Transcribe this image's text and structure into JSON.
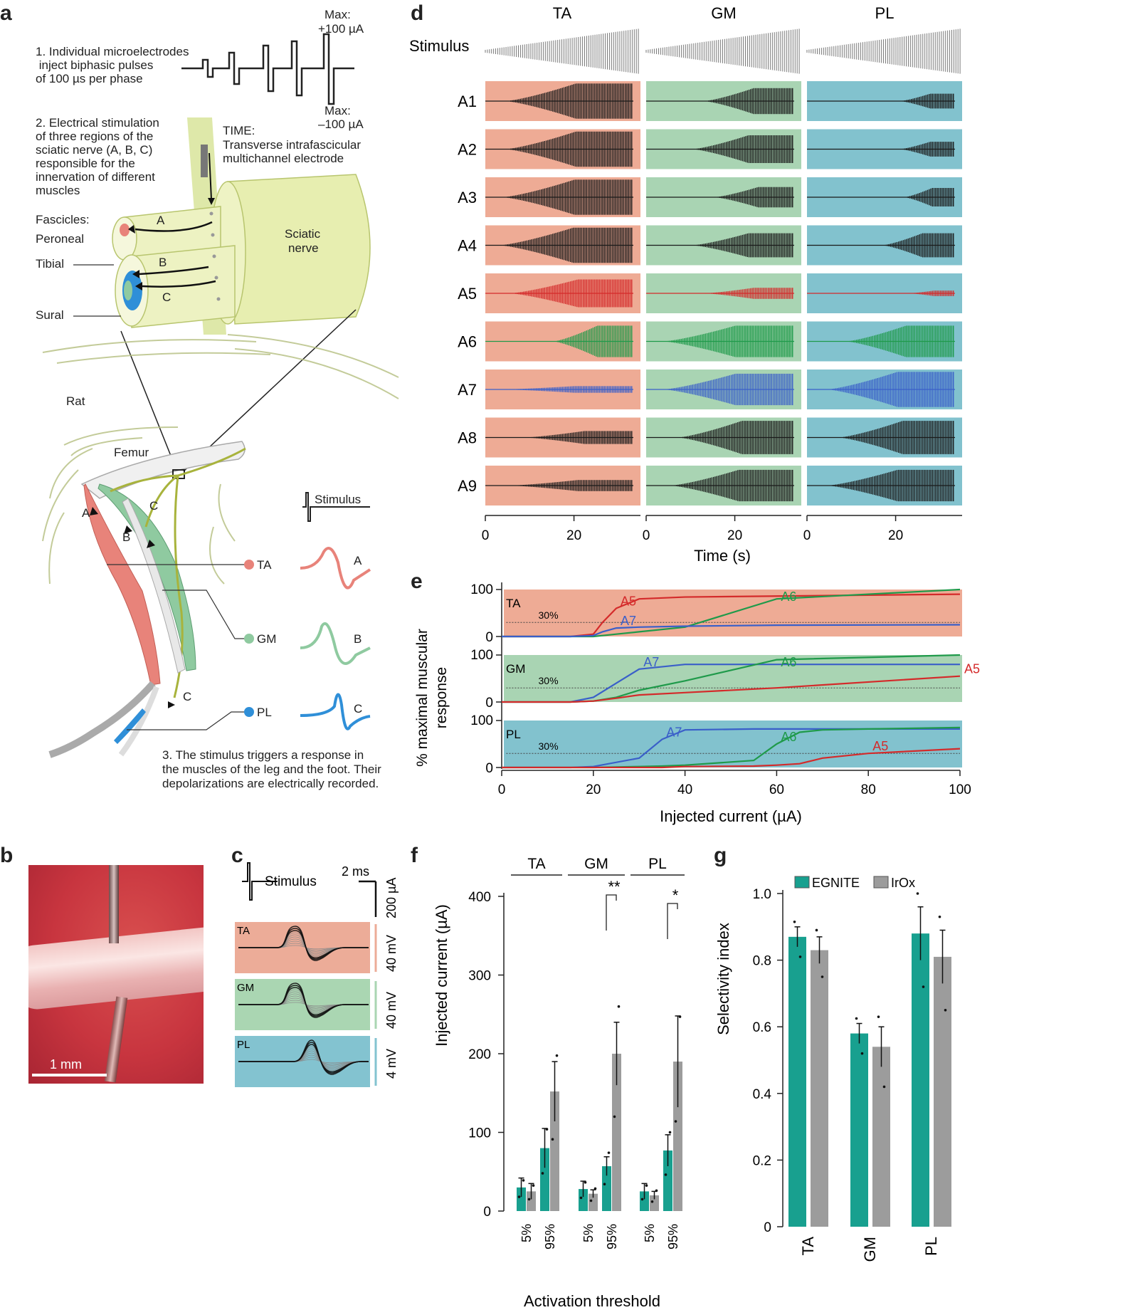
{
  "panel_labels": {
    "a": "a",
    "b": "b",
    "c": "c",
    "d": "d",
    "e": "e",
    "f": "f",
    "g": "g"
  },
  "panel_a": {
    "step1": [
      "1. Individual microelectrodes",
      " inject biphasic pulses",
      "of 100 µs per phase"
    ],
    "max_pos": [
      "Max:",
      "+100 µA"
    ],
    "max_neg": [
      "Max:",
      "–100 µA"
    ],
    "step2": [
      "2. Electrical stimulation",
      "of three regions of the",
      "sciatic nerve (A, B, C)",
      "responsible for the",
      "innervation of different",
      "muscles"
    ],
    "time_label": [
      "TIME:",
      "Transverse intrafascicular",
      "multichannel electrode"
    ],
    "fascicles": "Fascicles:",
    "peroneal": "Peroneal",
    "tibial": "Tibial",
    "sural": "Sural",
    "sciatic": [
      "Sciatic",
      "nerve"
    ],
    "region_a": "A",
    "region_b": "B",
    "region_c": "C",
    "rat": "Rat",
    "femur": "Femur",
    "stimulus": "Stimulus",
    "muscles": [
      "TA",
      "GM",
      "PL"
    ],
    "step3": [
      "3. The stimulus triggers a response in",
      "the muscles of the leg and the foot. Their",
      "depolarizations are electrically recorded."
    ],
    "colors": {
      "peroneal": "#e8837a",
      "tibial_blue": "#2f8fd8",
      "green": "#8fcaa0",
      "nerve": "#e7eeb0"
    }
  },
  "panel_b": {
    "scale_label": "1 mm"
  },
  "panel_c": {
    "time_scale": "2 ms",
    "stim_label": "Stimulus",
    "stim_scale": "200 µA",
    "rows": [
      {
        "name": "TA",
        "scale": "40 mV",
        "color": "#ecac98"
      },
      {
        "name": "GM",
        "scale": "40 mV",
        "color": "#aad6b2"
      },
      {
        "name": "PL",
        "scale": "4 mV",
        "color": "#83c3d0"
      }
    ]
  },
  "panel_d": {
    "columns": [
      "TA",
      "GM",
      "PL"
    ],
    "stimulus_label": "Stimulus",
    "rows": [
      "A1",
      "A2",
      "A3",
      "A4",
      "A5",
      "A6",
      "A7",
      "A8",
      "A9"
    ],
    "xlabel": "Time (s)",
    "xticks": [
      "0",
      "20"
    ],
    "bg_colors": [
      "#eeab95",
      "#a9d4b3",
      "#82c2ce"
    ],
    "trace_colors": {
      "A5": "#d42a2a",
      "A6": "#1f9a4a",
      "A7": "#3a5fc9",
      "default": "#1a1a1a"
    },
    "envelopes": [
      [
        [
          0.12,
          0.95
        ],
        [
          0.38,
          0.7
        ],
        [
          0.62,
          0.4
        ]
      ],
      [
        [
          0.12,
          0.95
        ],
        [
          0.3,
          0.75
        ],
        [
          0.62,
          0.4
        ]
      ],
      [
        [
          0.1,
          0.95
        ],
        [
          0.45,
          0.55
        ],
        [
          0.65,
          0.5
        ]
      ],
      [
        [
          0.08,
          0.95
        ],
        [
          0.3,
          0.65
        ],
        [
          0.5,
          0.65
        ]
      ],
      [
        [
          0.15,
          0.75
        ],
        [
          0.38,
          0.3
        ],
        [
          0.68,
          0.15
        ]
      ],
      [
        [
          0.45,
          0.85
        ],
        [
          0.1,
          0.85
        ],
        [
          0.25,
          0.85
        ]
      ],
      [
        [
          0.1,
          0.18
        ],
        [
          0.1,
          0.85
        ],
        [
          0.12,
          0.95
        ]
      ],
      [
        [
          0.25,
          0.35
        ],
        [
          0.2,
          0.9
        ],
        [
          0.2,
          0.9
        ]
      ],
      [
        [
          0.15,
          0.3
        ],
        [
          0.15,
          0.85
        ],
        [
          0.12,
          0.85
        ]
      ]
    ]
  },
  "panel_e": {
    "ylabel": [
      "% maximal muscular",
      "response"
    ],
    "xlabel": "Injected current (µA)",
    "xticks": [
      "0",
      "20",
      "40",
      "60",
      "80",
      "100"
    ],
    "threshold_label": "30%",
    "chart_data": [
      {
        "type": "line",
        "title": "TA",
        "x": [
          0,
          15,
          20,
          22,
          25,
          30,
          40,
          60,
          100
        ],
        "series": [
          {
            "name": "A5",
            "color": "#d42a2a",
            "y": [
              0,
              0,
              5,
              30,
              60,
              80,
              84,
              86,
              90
            ]
          },
          {
            "name": "A6",
            "color": "#1f9a4a",
            "y": [
              0,
              0,
              0,
              2,
              5,
              10,
              20,
              80,
              100
            ]
          },
          {
            "name": "A7",
            "color": "#3a5fc9",
            "y": [
              0,
              0,
              2,
              10,
              18,
              20,
              22,
              24,
              25
            ]
          }
        ]
      },
      {
        "type": "line",
        "title": "GM",
        "x": [
          0,
          15,
          20,
          25,
          30,
          40,
          60,
          100
        ],
        "series": [
          {
            "name": "A7",
            "color": "#3a5fc9",
            "y": [
              0,
              0,
              10,
              40,
              70,
              80,
              80,
              80
            ]
          },
          {
            "name": "A6",
            "color": "#1f9a4a",
            "y": [
              0,
              0,
              2,
              10,
              25,
              45,
              90,
              100
            ]
          },
          {
            "name": "A5",
            "color": "#d42a2a",
            "y": [
              0,
              0,
              2,
              8,
              15,
              20,
              30,
              55
            ]
          }
        ]
      },
      {
        "type": "line",
        "title": "PL",
        "x": [
          0,
          15,
          20,
          30,
          35,
          40,
          55,
          60,
          65,
          70,
          80,
          100
        ],
        "series": [
          {
            "name": "A7",
            "color": "#3a5fc9",
            "y": [
              0,
              0,
              2,
              20,
              60,
              80,
              82,
              82,
              82,
              82,
              82,
              82
            ]
          },
          {
            "name": "A6",
            "color": "#1f9a4a",
            "y": [
              0,
              0,
              0,
              2,
              3,
              5,
              15,
              50,
              75,
              80,
              82,
              85
            ]
          },
          {
            "name": "A5",
            "color": "#d42a2a",
            "y": [
              0,
              0,
              0,
              0,
              0,
              2,
              3,
              5,
              8,
              20,
              30,
              40
            ]
          }
        ]
      }
    ]
  },
  "panel_f": {
    "ylabel": "Injected current (µA)",
    "xlabel": "Activation threshold",
    "yticks": [
      "0",
      "100",
      "200",
      "300",
      "400"
    ],
    "groups": [
      "TA",
      "GM",
      "PL"
    ],
    "significance": [
      "**",
      "*"
    ],
    "chart_data": {
      "type": "bar",
      "categories": [
        "TA 5%",
        "TA 95%",
        "GM 5%",
        "GM 95%",
        "PL 5%",
        "PL 95%"
      ],
      "tick_labels": [
        "5%",
        "95%",
        "5%",
        "95%",
        "5%",
        "95%"
      ],
      "series": [
        {
          "name": "EGNITE",
          "color": "#18a08f",
          "values": [
            30,
            80,
            28,
            57,
            25,
            77
          ],
          "err": [
            12,
            25,
            10,
            12,
            10,
            20
          ]
        },
        {
          "name": "IrOx",
          "color": "#9c9c9c",
          "values": [
            25,
            152,
            22,
            200,
            20,
            190
          ],
          "err": [
            10,
            38,
            5,
            40,
            5,
            58
          ]
        }
      ],
      "ylim": [
        0,
        400
      ]
    }
  },
  "panel_g": {
    "ylabel": "Selectivity index",
    "yticks": [
      "0",
      "0.2",
      "0.4",
      "0.6",
      "0.8",
      "1.0"
    ],
    "legend": [
      "EGNITE",
      "IrOx"
    ],
    "chart_data": {
      "type": "bar",
      "categories": [
        "TA",
        "GM",
        "PL"
      ],
      "series": [
        {
          "name": "EGNITE",
          "color": "#18a08f",
          "values": [
            0.87,
            0.58,
            0.88
          ],
          "err": [
            0.03,
            0.03,
            0.08
          ]
        },
        {
          "name": "IrOx",
          "color": "#9c9c9c",
          "values": [
            0.83,
            0.54,
            0.81
          ],
          "err": [
            0.04,
            0.06,
            0.08
          ]
        }
      ],
      "ylim": [
        0,
        1.0
      ]
    }
  }
}
